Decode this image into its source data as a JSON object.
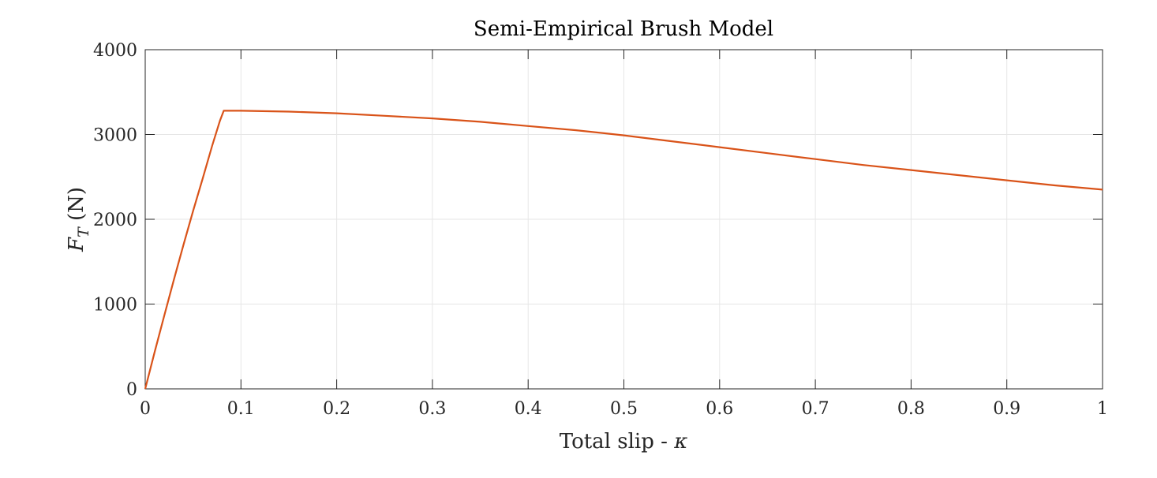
{
  "chart_data": {
    "type": "line",
    "title": "Semi-Empirical Brush Model",
    "xlabel": {
      "text": "Total slip - ",
      "symbol": "κ"
    },
    "ylabel": {
      "symbol": "F",
      "subscript": "T",
      "unit": " (N)"
    },
    "xlim": [
      0,
      1
    ],
    "ylim": [
      0,
      4000
    ],
    "xticks": [
      0,
      0.1,
      0.2,
      0.3,
      0.4,
      0.5,
      0.6,
      0.7,
      0.8,
      0.9,
      1
    ],
    "xtick_labels": [
      "0",
      "0.1",
      "0.2",
      "0.3",
      "0.4",
      "0.5",
      "0.6",
      "0.7",
      "0.8",
      "0.9",
      "1"
    ],
    "yticks": [
      0,
      1000,
      2000,
      3000,
      4000
    ],
    "ytick_labels": [
      "0",
      "1000",
      "2000",
      "3000",
      "4000"
    ],
    "grid": true,
    "series": [
      {
        "color": "#D95319",
        "x": [
          0,
          0.01,
          0.02,
          0.03,
          0.04,
          0.05,
          0.06,
          0.07,
          0.078,
          0.082,
          0.1,
          0.15,
          0.2,
          0.25,
          0.3,
          0.35,
          0.4,
          0.45,
          0.5,
          0.55,
          0.6,
          0.65,
          0.7,
          0.75,
          0.8,
          0.85,
          0.9,
          0.95,
          1.0
        ],
        "y": [
          0,
          440,
          870,
          1290,
          1700,
          2100,
          2480,
          2870,
          3160,
          3280,
          3280,
          3270,
          3250,
          3220,
          3190,
          3150,
          3100,
          3050,
          2990,
          2920,
          2850,
          2780,
          2710,
          2640,
          2580,
          2520,
          2460,
          2400,
          2350
        ]
      }
    ]
  }
}
